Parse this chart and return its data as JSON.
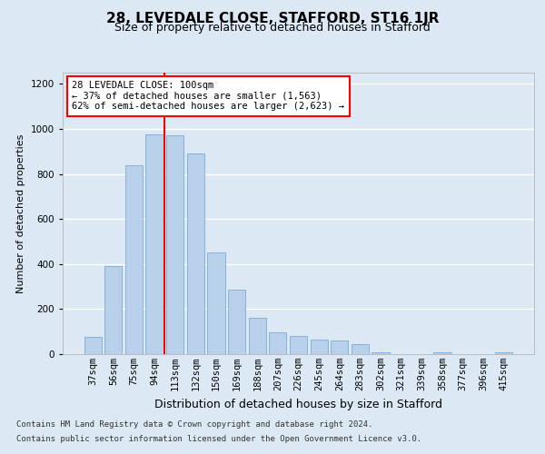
{
  "title": "28, LEVEDALE CLOSE, STAFFORD, ST16 1JR",
  "subtitle": "Size of property relative to detached houses in Stafford",
  "xlabel": "Distribution of detached houses by size in Stafford",
  "ylabel": "Number of detached properties",
  "categories": [
    "37sqm",
    "56sqm",
    "75sqm",
    "94sqm",
    "113sqm",
    "132sqm",
    "150sqm",
    "169sqm",
    "188sqm",
    "207sqm",
    "226sqm",
    "245sqm",
    "264sqm",
    "283sqm",
    "302sqm",
    "321sqm",
    "339sqm",
    "358sqm",
    "377sqm",
    "396sqm",
    "415sqm"
  ],
  "values": [
    75,
    390,
    840,
    975,
    970,
    890,
    450,
    285,
    160,
    95,
    80,
    65,
    60,
    45,
    10,
    0,
    0,
    10,
    0,
    0,
    10
  ],
  "bar_color": "#b8d0ea",
  "bar_edge_color": "#7aadd4",
  "vline_x_index": 4,
  "vline_color": "red",
  "annotation_text": "28 LEVEDALE CLOSE: 100sqm\n← 37% of detached houses are smaller (1,563)\n62% of semi-detached houses are larger (2,623) →",
  "annotation_box_color": "white",
  "annotation_box_edge_color": "red",
  "footnote1": "Contains HM Land Registry data © Crown copyright and database right 2024.",
  "footnote2": "Contains public sector information licensed under the Open Government Licence v3.0.",
  "ylim": [
    0,
    1250
  ],
  "yticks": [
    0,
    200,
    400,
    600,
    800,
    1000,
    1200
  ],
  "background_color": "#dce9f5",
  "title_fontsize": 11,
  "subtitle_fontsize": 9,
  "xlabel_fontsize": 9,
  "ylabel_fontsize": 8,
  "tick_fontsize": 7.5,
  "footnote_fontsize": 6.5
}
